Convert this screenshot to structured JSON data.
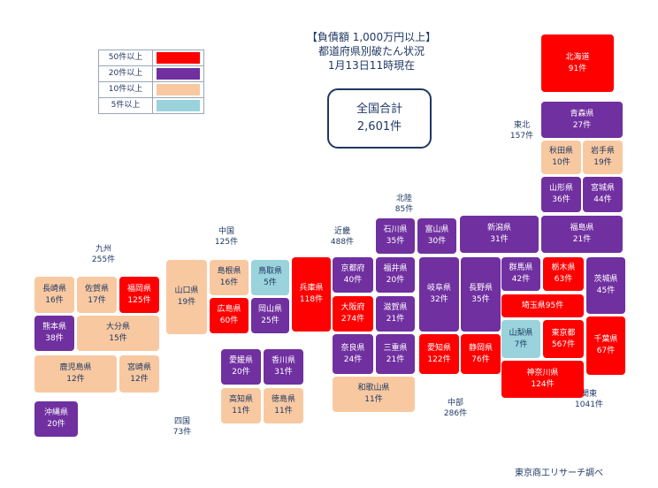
{
  "title_lines": [
    "【負債額 1,000万円以上】",
    "都道府県別破たん状況",
    "1月13日11時現在"
  ],
  "total": {
    "label": "全国合計",
    "value": "2,601件"
  },
  "legend": [
    {
      "label": "50件以上",
      "color": "#fe0000"
    },
    {
      "label": "20件以上",
      "color": "#7030a0"
    },
    {
      "label": "10件以上",
      "color": "#f8c9a1"
    },
    {
      "label": "5件以上",
      "color": "#9ad3dc"
    }
  ],
  "regions": [
    {
      "name": "東北",
      "count": "157件"
    },
    {
      "name": "北陸",
      "count": "85件"
    },
    {
      "name": "中国",
      "count": "125件"
    },
    {
      "name": "近畿",
      "count": "488件"
    },
    {
      "name": "九州",
      "count": "255件"
    },
    {
      "name": "中部",
      "count": "286件"
    },
    {
      "name": "四国",
      "count": "73件"
    },
    {
      "name": "関東",
      "count": "1041件"
    }
  ],
  "chart_data": {
    "type": "table",
    "title": "【負債額 1,000万円以上】 都道府県別破たん状況 1月13日11時現在",
    "total": 2601,
    "prefectures": [
      {
        "name": "北海道",
        "count": 91
      },
      {
        "name": "青森県",
        "count": 27
      },
      {
        "name": "秋田県",
        "count": 10
      },
      {
        "name": "岩手県",
        "count": 19
      },
      {
        "name": "山形県",
        "count": 36
      },
      {
        "name": "宮城県",
        "count": 44
      },
      {
        "name": "福島県",
        "count": 21
      },
      {
        "name": "新潟県",
        "count": 31
      },
      {
        "name": "石川県",
        "count": 35
      },
      {
        "name": "富山県",
        "count": 30
      },
      {
        "name": "福井県",
        "count": 20
      },
      {
        "name": "岐阜県",
        "count": 32
      },
      {
        "name": "長野県",
        "count": 35
      },
      {
        "name": "群馬県",
        "count": 42
      },
      {
        "name": "栃木県",
        "count": 63
      },
      {
        "name": "茨城県",
        "count": 45
      },
      {
        "name": "埼玉県",
        "count": 95
      },
      {
        "name": "山梨県",
        "count": 7
      },
      {
        "name": "東京都",
        "count": 567
      },
      {
        "name": "千葉県",
        "count": 67
      },
      {
        "name": "神奈川県",
        "count": 124
      },
      {
        "name": "静岡県",
        "count": 76
      },
      {
        "name": "愛知県",
        "count": 122
      },
      {
        "name": "三重県",
        "count": 21
      },
      {
        "name": "滋賀県",
        "count": 21
      },
      {
        "name": "京都府",
        "count": 40
      },
      {
        "name": "大阪府",
        "count": 274
      },
      {
        "name": "兵庫県",
        "count": 118
      },
      {
        "name": "奈良県",
        "count": 24
      },
      {
        "name": "和歌山県",
        "count": 11
      },
      {
        "name": "鳥取県",
        "count": 5
      },
      {
        "name": "島根県",
        "count": 16
      },
      {
        "name": "岡山県",
        "count": 25
      },
      {
        "name": "広島県",
        "count": 60
      },
      {
        "name": "山口県",
        "count": 19
      },
      {
        "name": "香川県",
        "count": 31
      },
      {
        "name": "愛媛県",
        "count": 20
      },
      {
        "name": "徳島県",
        "count": 11
      },
      {
        "name": "高知県",
        "count": 11
      },
      {
        "name": "福岡県",
        "count": 125
      },
      {
        "name": "佐賀県",
        "count": 17
      },
      {
        "name": "長崎県",
        "count": 16
      },
      {
        "name": "大分県",
        "count": 15
      },
      {
        "name": "熊本県",
        "count": 38
      },
      {
        "name": "宮崎県",
        "count": 12
      },
      {
        "name": "鹿児島県",
        "count": 12
      },
      {
        "name": "沖縄県",
        "count": 20
      }
    ],
    "thresholds": [
      50,
      20,
      10,
      5
    ]
  },
  "source": "東京商工リサーチ調べ"
}
